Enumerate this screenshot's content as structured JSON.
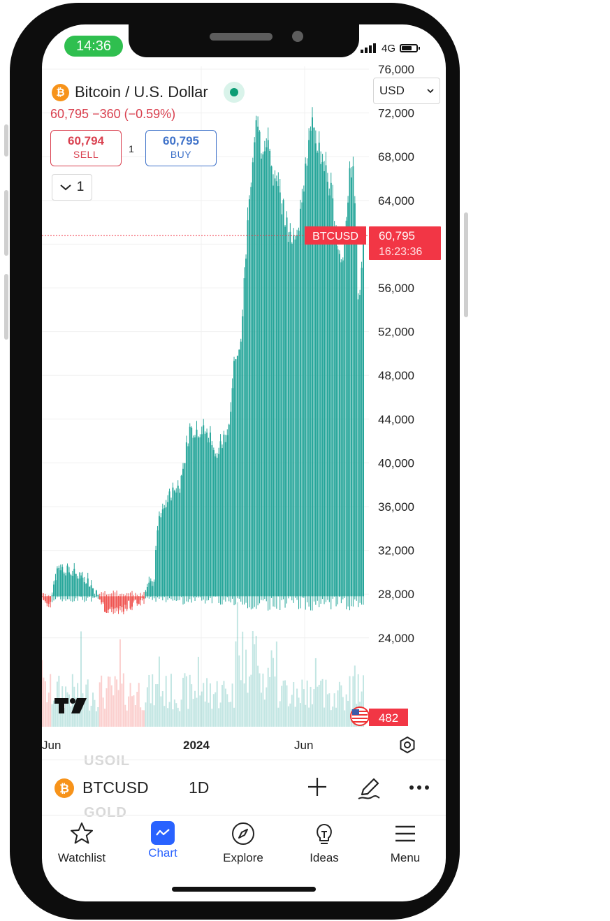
{
  "status_bar": {
    "time": "14:36",
    "network": "4G"
  },
  "instrument": {
    "name": "Bitcoin / U.S. Dollar",
    "symbol": "BTCUSD",
    "logo": "₿",
    "currency": "USD",
    "last_price": "60,795",
    "change": "−360 (−0.59%)"
  },
  "quotes": {
    "sell_price": "60,794",
    "sell_label": "SELL",
    "buy_price": "60,795",
    "buy_label": "BUY",
    "spread": "1"
  },
  "interval_button": {
    "label": "1"
  },
  "price_tag": {
    "symbol": "BTCUSD",
    "price": "60,795",
    "countdown": "16:23:36"
  },
  "volume_tag": "482",
  "behind_list": [
    "USOIL",
    "GOLD"
  ],
  "toolbar": {
    "symbol": "BTCUSD",
    "interval": "1D"
  },
  "nav": [
    {
      "label": "Watchlist",
      "icon": "star-icon"
    },
    {
      "label": "Chart",
      "icon": "chart-icon",
      "active": true
    },
    {
      "label": "Explore",
      "icon": "compass-icon"
    },
    {
      "label": "Ideas",
      "icon": "lightbulb-icon"
    },
    {
      "label": "Menu",
      "icon": "hamburger-menu-icon"
    }
  ],
  "colors": {
    "up": "#26a69a",
    "down": "#ef5350",
    "accent": "#2962ff",
    "price_tag": "#f23645"
  },
  "chart_data": {
    "type": "candlestick",
    "y_tick_labels": [
      "76,000",
      "72,000",
      "68,000",
      "64,000",
      "56,000",
      "52,000",
      "48,000",
      "44,000",
      "40,000",
      "36,000",
      "32,000",
      "28,000",
      "24,000"
    ],
    "ylim": [
      20000,
      76000
    ],
    "x_tick_labels": [
      "Jun",
      "2024",
      "Jun"
    ],
    "anchors": [
      {
        "t": 0,
        "v": 27800
      },
      {
        "t": 0.02,
        "v": 26800
      },
      {
        "t": 0.05,
        "v": 30600
      },
      {
        "t": 0.08,
        "v": 30100
      },
      {
        "t": 0.14,
        "v": 29400
      },
      {
        "t": 0.2,
        "v": 26600
      },
      {
        "t": 0.25,
        "v": 26800
      },
      {
        "t": 0.3,
        "v": 27200
      },
      {
        "t": 0.33,
        "v": 28500
      },
      {
        "t": 0.35,
        "v": 29400
      },
      {
        "t": 0.36,
        "v": 34200
      },
      {
        "t": 0.4,
        "v": 37100
      },
      {
        "t": 0.43,
        "v": 38000
      },
      {
        "t": 0.46,
        "v": 43100
      },
      {
        "t": 0.5,
        "v": 42900
      },
      {
        "t": 0.53,
        "v": 42200
      },
      {
        "t": 0.54,
        "v": 40200
      },
      {
        "t": 0.56,
        "v": 41600
      },
      {
        "t": 0.58,
        "v": 43000
      },
      {
        "t": 0.6,
        "v": 49800
      },
      {
        "t": 0.62,
        "v": 51900
      },
      {
        "t": 0.63,
        "v": 57500
      },
      {
        "t": 0.65,
        "v": 65500
      },
      {
        "t": 0.665,
        "v": 71500
      },
      {
        "t": 0.68,
        "v": 68500
      },
      {
        "t": 0.7,
        "v": 70000
      },
      {
        "t": 0.72,
        "v": 66000
      },
      {
        "t": 0.74,
        "v": 64500
      },
      {
        "t": 0.76,
        "v": 62000
      },
      {
        "t": 0.78,
        "v": 59500
      },
      {
        "t": 0.8,
        "v": 62500
      },
      {
        "t": 0.82,
        "v": 67000
      },
      {
        "t": 0.84,
        "v": 70500
      },
      {
        "t": 0.86,
        "v": 69000
      },
      {
        "t": 0.88,
        "v": 67000
      },
      {
        "t": 0.9,
        "v": 64500
      },
      {
        "t": 0.92,
        "v": 60000
      },
      {
        "t": 0.935,
        "v": 57800
      },
      {
        "t": 0.95,
        "v": 64000
      },
      {
        "t": 0.965,
        "v": 67500
      },
      {
        "t": 0.975,
        "v": 63500
      },
      {
        "t": 0.985,
        "v": 54500
      },
      {
        "t": 1,
        "v": 60795
      }
    ]
  }
}
